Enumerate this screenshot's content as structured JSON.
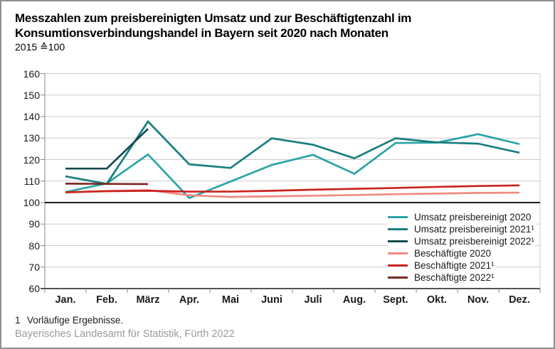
{
  "header": {
    "title_line1": "Messzahlen zum preisbereinigten Umsatz und zur Beschäftigtenzahl im",
    "title_line2": "Konsumtionsverbindungshandel in Bayern seit 2020 nach Monaten",
    "subtitle": "2015 ≙100"
  },
  "chart_data": {
    "type": "line",
    "title": "Messzahlen zum preisbereinigten Umsatz und zur Beschäftigtenzahl im Konsumtionsverbindungshandel in Bayern seit 2020 nach Monaten",
    "index_base": "2015 ≙100",
    "categories": [
      "Jan.",
      "Feb.",
      "März",
      "Apr.",
      "Mai",
      "Juni",
      "Juli",
      "Aug.",
      "Sept.",
      "Okt.",
      "Nov.",
      "Dez."
    ],
    "ylim": [
      60,
      160
    ],
    "y_ticks": [
      60,
      70,
      80,
      90,
      100,
      110,
      120,
      130,
      140,
      150,
      160
    ],
    "baseline": 100,
    "grid": true,
    "legend_position": "inside-bottom-right",
    "colors": {
      "grid": "#cccccc",
      "axis": "#1a1a1a",
      "tick": "#8a8a8a",
      "baseline": "#1a1a1a"
    },
    "series": [
      {
        "name": "Umsatz preisbereinigt 2020",
        "color": "#2aa4a6",
        "values": [
          104.9,
          108.9,
          122.4,
          102.1,
          109.8,
          117.5,
          122.2,
          113.4,
          127.7,
          127.9,
          131.8,
          127.2
        ]
      },
      {
        "name": "Umsatz preisbereinigt 2021¹",
        "color": "#187e80",
        "values": [
          112.2,
          108.7,
          137.7,
          117.8,
          116.1,
          129.9,
          126.9,
          120.6,
          129.9,
          128.0,
          127.4,
          123.2
        ]
      },
      {
        "name": "Umsatz preisbereinigt 2022¹",
        "color": "#164a4d",
        "values": [
          115.8,
          115.8,
          134.3
        ]
      },
      {
        "name": "Beschäftigte 2020",
        "color": "#f08a82",
        "values": [
          104.7,
          105.4,
          105.8,
          103.4,
          102.6,
          102.9,
          103.2,
          103.5,
          103.9,
          104.2,
          104.5,
          104.6
        ]
      },
      {
        "name": "Beschäftigte 2021¹",
        "color": "#c9241f",
        "values": [
          104.8,
          105.3,
          105.5,
          105.1,
          105.1,
          105.5,
          106.0,
          106.4,
          106.8,
          107.3,
          107.7,
          108.0
        ]
      },
      {
        "name": "Beschäftigte 2022¹",
        "color": "#7c2824",
        "values": [
          108.8,
          108.7,
          108.6
        ]
      }
    ]
  },
  "footer": {
    "footnote_marker": "1",
    "footnote_text": "Vorläufige Ergebnisse.",
    "source": "Bayerisches Landesamt für Statistik, Fürth 2022"
  }
}
